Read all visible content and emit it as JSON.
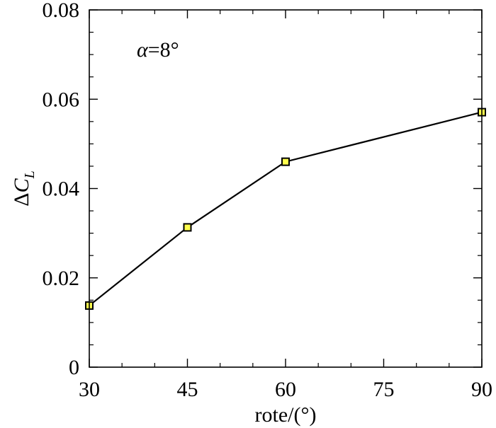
{
  "chart_data": {
    "type": "line",
    "title": "",
    "xlabel": "rote/(°)",
    "ylabel": {
      "prefix": "Δ",
      "main": "C",
      "subscript": "L"
    },
    "xlim": [
      30,
      90
    ],
    "ylim": [
      0,
      0.08
    ],
    "x_ticks": [
      30,
      45,
      60,
      75,
      90
    ],
    "x_tick_labels": [
      "30",
      "45",
      "60",
      "75",
      "90"
    ],
    "y_ticks": [
      0,
      0.02,
      0.04,
      0.06,
      0.08
    ],
    "y_tick_labels": [
      "0",
      "0.02",
      "0.04",
      "0.06",
      "0.08"
    ],
    "grid": false,
    "annotation": {
      "symbol": "α",
      "text": "=8°"
    },
    "series": [
      {
        "x": [
          30,
          45,
          60,
          90
        ],
        "y": [
          0.0138,
          0.0313,
          0.046,
          0.0571
        ],
        "line_color": "#000000",
        "marker": "square",
        "marker_fill": "#ffff4d",
        "marker_edge": "#000000"
      }
    ]
  }
}
